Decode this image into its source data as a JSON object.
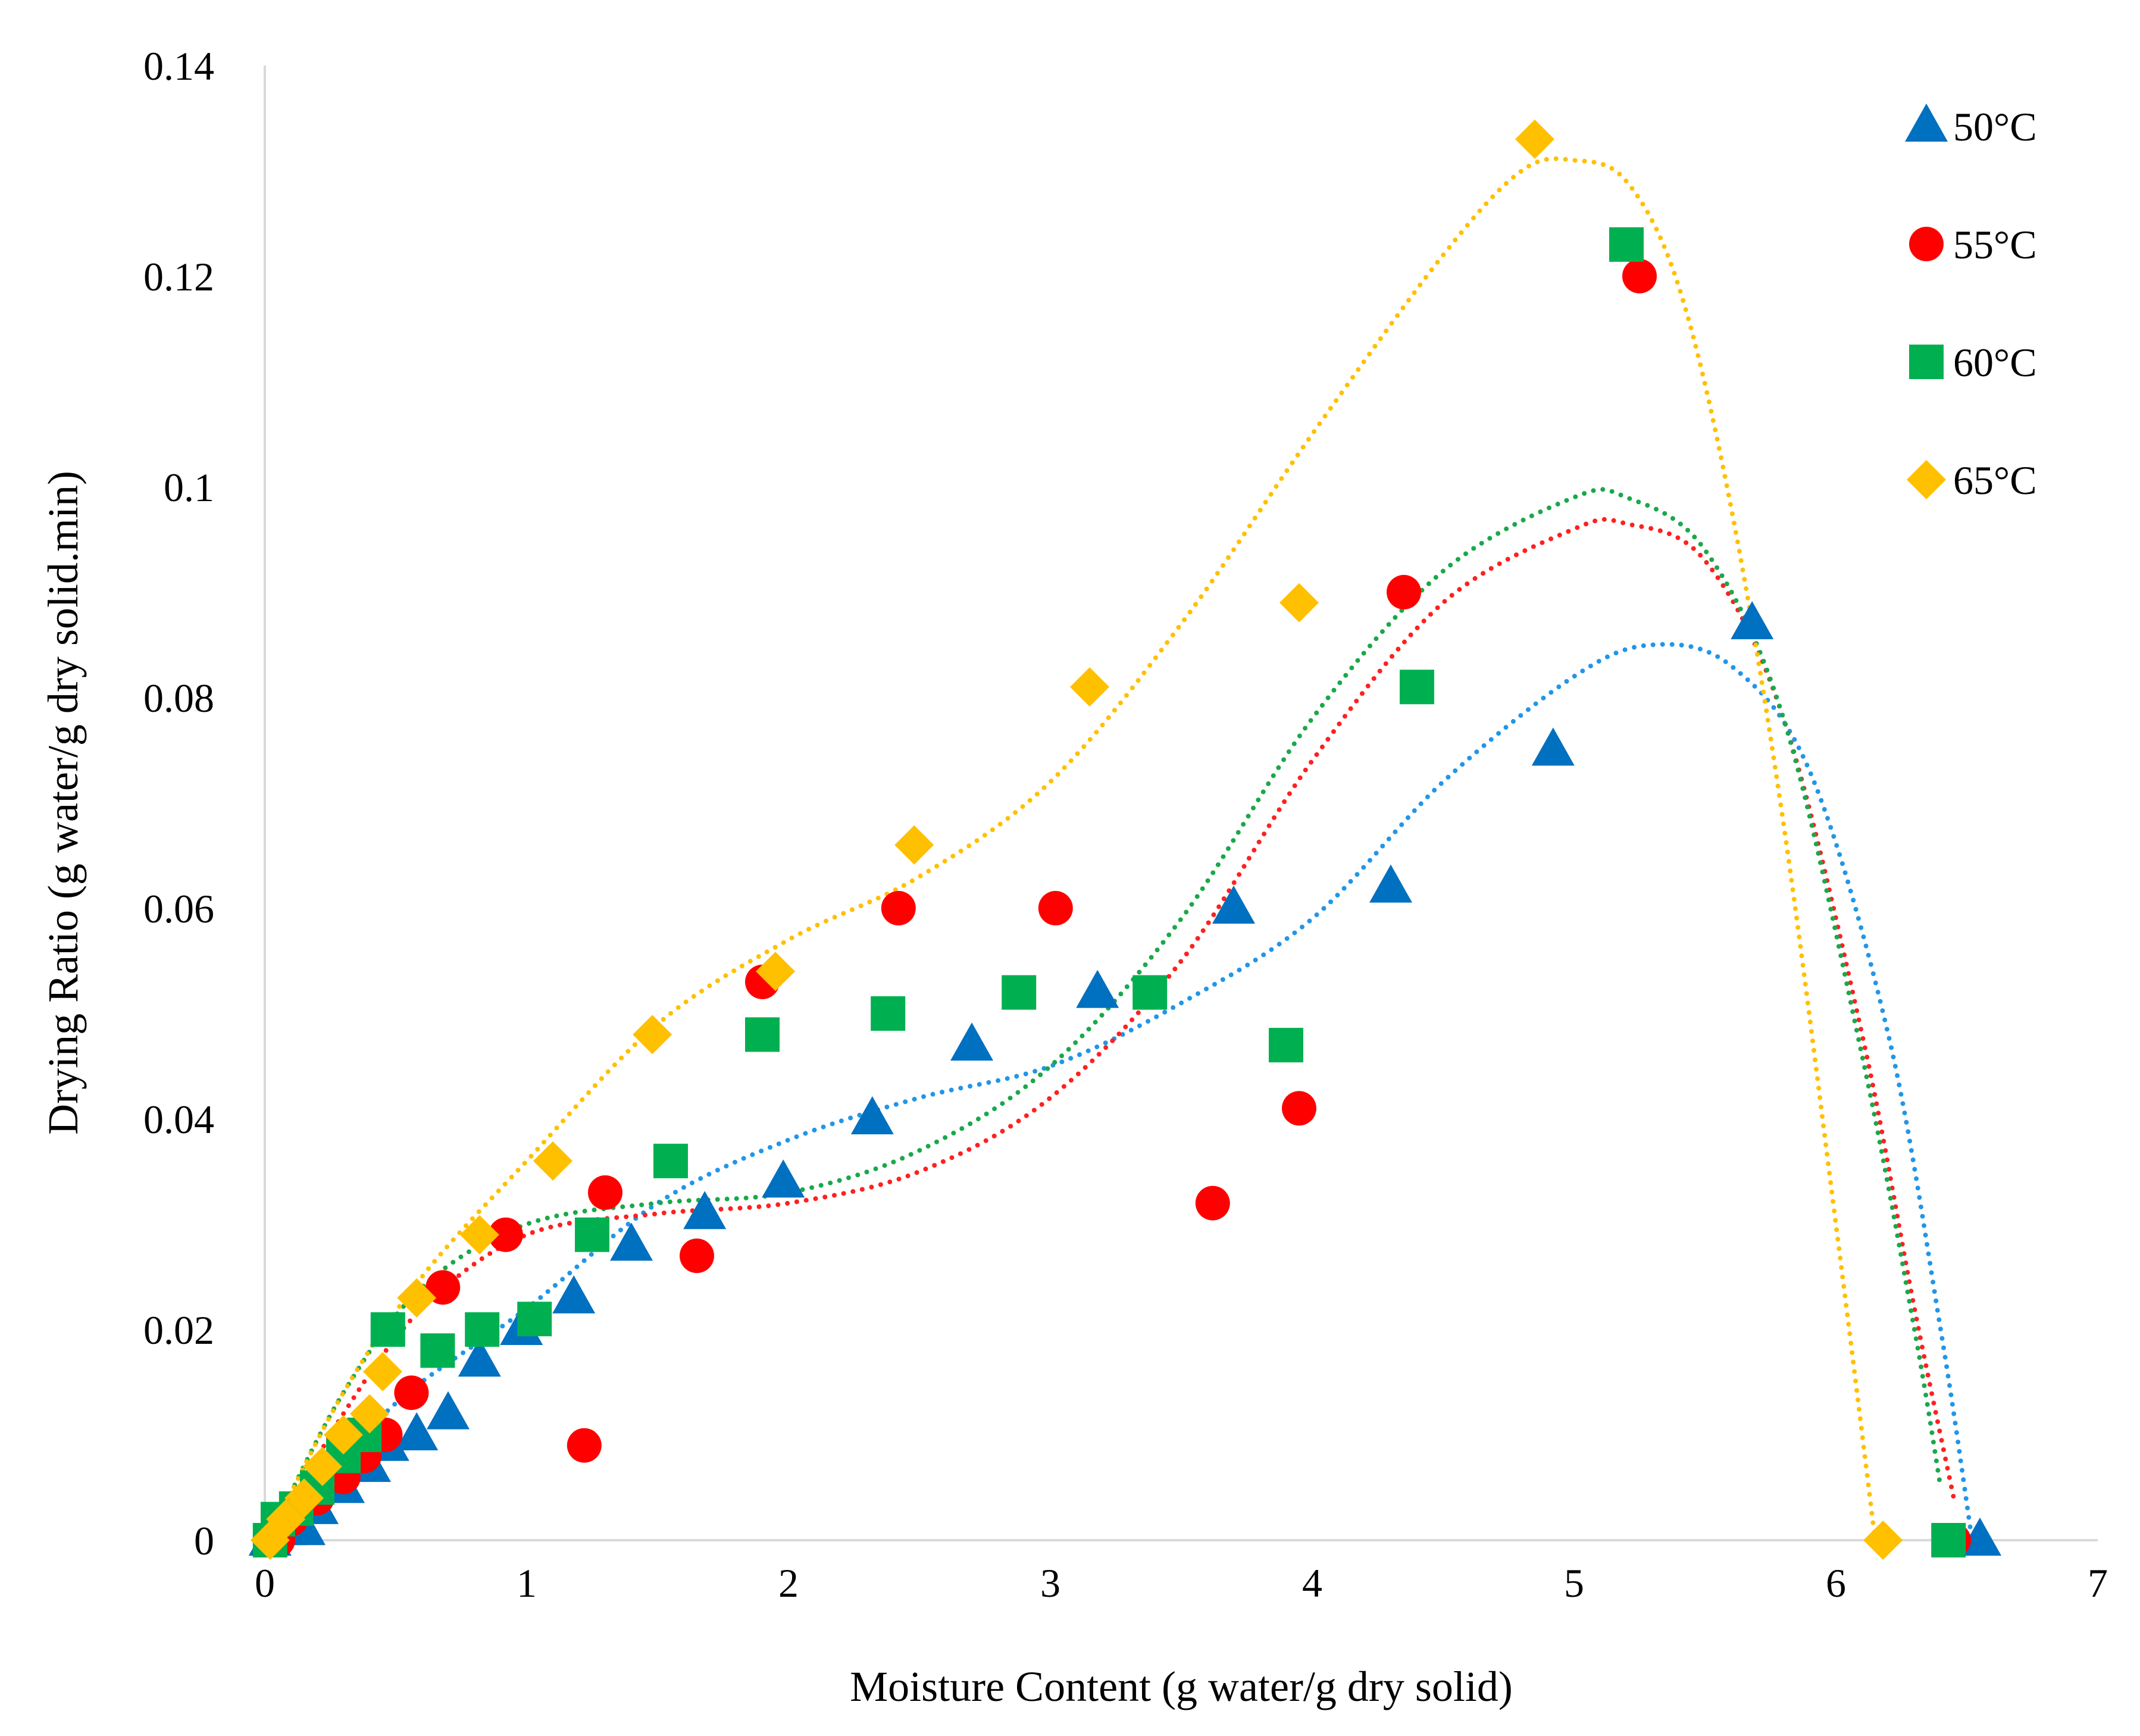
{
  "chart_data": {
    "type": "scatter",
    "title": "",
    "xlabel": "Moisture Content (g water/g dry solid)",
    "ylabel": "Drying Ratio (g water/g dry solid.min)",
    "xlim": [
      0,
      7
    ],
    "ylim": [
      0,
      0.14
    ],
    "xticks": [
      "0",
      "1",
      "2",
      "3",
      "4",
      "5",
      "6",
      "7"
    ],
    "yticks": [
      "0",
      "0.02",
      "0.04",
      "0.06",
      "0.08",
      "0.1",
      "0.12",
      "0.14"
    ],
    "grid": false,
    "legend_position": "top-right",
    "series": [
      {
        "name": "50°C",
        "marker": "triangle",
        "color": "#0070C0",
        "trend_color": "#2196E8",
        "points": [
          [
            0.02,
            0
          ],
          [
            0.08,
            0.001
          ],
          [
            0.15,
            0.001
          ],
          [
            0.2,
            0.003
          ],
          [
            0.3,
            0.005
          ],
          [
            0.4,
            0.007
          ],
          [
            0.47,
            0.009
          ],
          [
            0.58,
            0.01
          ],
          [
            0.7,
            0.012
          ],
          [
            0.82,
            0.017
          ],
          [
            0.98,
            0.02
          ],
          [
            1.18,
            0.023
          ],
          [
            1.4,
            0.028
          ],
          [
            1.68,
            0.031
          ],
          [
            1.98,
            0.034
          ],
          [
            2.32,
            0.04
          ],
          [
            2.7,
            0.047
          ],
          [
            3.18,
            0.052
          ],
          [
            3.7,
            0.06
          ],
          [
            4.3,
            0.062
          ],
          [
            4.92,
            0.075
          ],
          [
            5.68,
            0.087
          ],
          [
            6.55,
            0
          ]
        ],
        "trend": [
          [
            0.05,
            0.001
          ],
          [
            0.5,
            0.013
          ],
          [
            1,
            0.022
          ],
          [
            1.5,
            0.032
          ],
          [
            2,
            0.038
          ],
          [
            2.5,
            0.042
          ],
          [
            3,
            0.045
          ],
          [
            3.5,
            0.051
          ],
          [
            4,
            0.059
          ],
          [
            4.5,
            0.072
          ],
          [
            5,
            0.082
          ],
          [
            5.3,
            0.085
          ],
          [
            5.6,
            0.083
          ],
          [
            5.9,
            0.073
          ],
          [
            6.2,
            0.048
          ],
          [
            6.4,
            0.02
          ],
          [
            6.52,
            0
          ]
        ]
      },
      {
        "name": "55°C",
        "marker": "circle",
        "color": "#FF0000",
        "trend_color": "#FF2020",
        "points": [
          [
            0.05,
            0
          ],
          [
            0.1,
            0.002
          ],
          [
            0.2,
            0.004
          ],
          [
            0.3,
            0.006
          ],
          [
            0.38,
            0.008
          ],
          [
            0.46,
            0.01
          ],
          [
            0.56,
            0.014
          ],
          [
            0.68,
            0.024
          ],
          [
            0.92,
            0.029
          ],
          [
            1.22,
            0.009
          ],
          [
            1.3,
            0.033
          ],
          [
            1.65,
            0.027
          ],
          [
            1.9,
            0.053
          ],
          [
            2.42,
            0.06
          ],
          [
            3.02,
            0.06
          ],
          [
            3.62,
            0.032
          ],
          [
            3.95,
            0.041
          ],
          [
            4.35,
            0.09
          ],
          [
            5.25,
            0.12
          ],
          [
            6.45,
            0
          ]
        ],
        "trend": [
          [
            0.05,
            0.001
          ],
          [
            0.3,
            0.012
          ],
          [
            0.6,
            0.022
          ],
          [
            1,
            0.029
          ],
          [
            1.5,
            0.031
          ],
          [
            2,
            0.032
          ],
          [
            2.5,
            0.035
          ],
          [
            3,
            0.042
          ],
          [
            3.5,
            0.055
          ],
          [
            4,
            0.074
          ],
          [
            4.5,
            0.089
          ],
          [
            5,
            0.096
          ],
          [
            5.2,
            0.0965
          ],
          [
            5.5,
            0.093
          ],
          [
            5.8,
            0.078
          ],
          [
            6.1,
            0.048
          ],
          [
            6.3,
            0.022
          ],
          [
            6.45,
            0.004
          ]
        ]
      },
      {
        "name": "60°C",
        "marker": "square",
        "color": "#00B050",
        "trend_color": "#1AA84A",
        "points": [
          [
            0.02,
            0
          ],
          [
            0.05,
            0.002
          ],
          [
            0.12,
            0.003
          ],
          [
            0.2,
            0.005
          ],
          [
            0.3,
            0.008
          ],
          [
            0.38,
            0.01
          ],
          [
            0.47,
            0.02
          ],
          [
            0.66,
            0.018
          ],
          [
            0.83,
            0.02
          ],
          [
            1.03,
            0.021
          ],
          [
            1.25,
            0.029
          ],
          [
            1.55,
            0.036
          ],
          [
            1.9,
            0.048
          ],
          [
            2.38,
            0.05
          ],
          [
            2.88,
            0.052
          ],
          [
            3.38,
            0.052
          ],
          [
            3.9,
            0.047
          ],
          [
            4.4,
            0.081
          ],
          [
            5.2,
            0.123
          ],
          [
            6.43,
            0
          ]
        ],
        "trend": [
          [
            0.05,
            0.002
          ],
          [
            0.3,
            0.014
          ],
          [
            0.6,
            0.024
          ],
          [
            1,
            0.03
          ],
          [
            1.5,
            0.032
          ],
          [
            2,
            0.033
          ],
          [
            2.5,
            0.037
          ],
          [
            3,
            0.045
          ],
          [
            3.5,
            0.059
          ],
          [
            4,
            0.078
          ],
          [
            4.5,
            0.092
          ],
          [
            5,
            0.099
          ],
          [
            5.2,
            0.099
          ],
          [
            5.5,
            0.094
          ],
          [
            5.8,
            0.078
          ],
          [
            6.1,
            0.046
          ],
          [
            6.3,
            0.02
          ],
          [
            6.4,
            0.005
          ]
        ]
      },
      {
        "name": "65°C",
        "marker": "diamond",
        "color": "#FFC000",
        "trend_color": "#FFC000",
        "points": [
          [
            0.02,
            0
          ],
          [
            0.08,
            0.002
          ],
          [
            0.15,
            0.004
          ],
          [
            0.22,
            0.007
          ],
          [
            0.3,
            0.01
          ],
          [
            0.4,
            0.012
          ],
          [
            0.45,
            0.016
          ],
          [
            0.58,
            0.023
          ],
          [
            0.82,
            0.029
          ],
          [
            1.1,
            0.036
          ],
          [
            1.48,
            0.048
          ],
          [
            1.95,
            0.054
          ],
          [
            2.48,
            0.066
          ],
          [
            3.15,
            0.081
          ],
          [
            3.95,
            0.089
          ],
          [
            4.85,
            0.133
          ],
          [
            6.18,
            0
          ]
        ],
        "trend": [
          [
            0.03,
            0.001
          ],
          [
            0.3,
            0.014
          ],
          [
            0.6,
            0.025
          ],
          [
            1,
            0.036
          ],
          [
            1.5,
            0.049
          ],
          [
            2,
            0.057
          ],
          [
            2.5,
            0.063
          ],
          [
            3,
            0.072
          ],
          [
            3.5,
            0.087
          ],
          [
            4,
            0.105
          ],
          [
            4.5,
            0.122
          ],
          [
            4.8,
            0.13
          ],
          [
            5,
            0.131
          ],
          [
            5.2,
            0.129
          ],
          [
            5.4,
            0.119
          ],
          [
            5.6,
            0.098
          ],
          [
            5.8,
            0.068
          ],
          [
            6,
            0.03
          ],
          [
            6.15,
            0
          ]
        ]
      }
    ]
  }
}
